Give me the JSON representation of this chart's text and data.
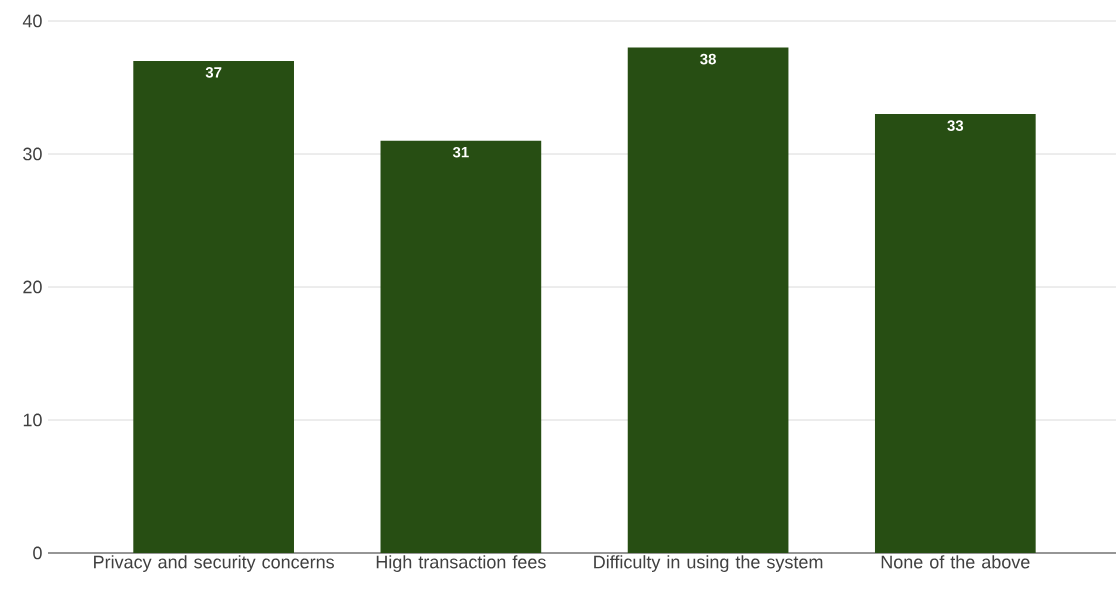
{
  "chart_data": {
    "type": "bar",
    "categories": [
      "Privacy and security concerns",
      "High transaction fees",
      "Difficulty in using the system",
      "None of the above"
    ],
    "values": [
      37,
      31,
      38,
      33
    ],
    "color": "#274e13",
    "ylim": [
      0,
      40
    ],
    "yticks": [
      0,
      10,
      20,
      30,
      40
    ],
    "grid": "y",
    "data_labels": true
  }
}
